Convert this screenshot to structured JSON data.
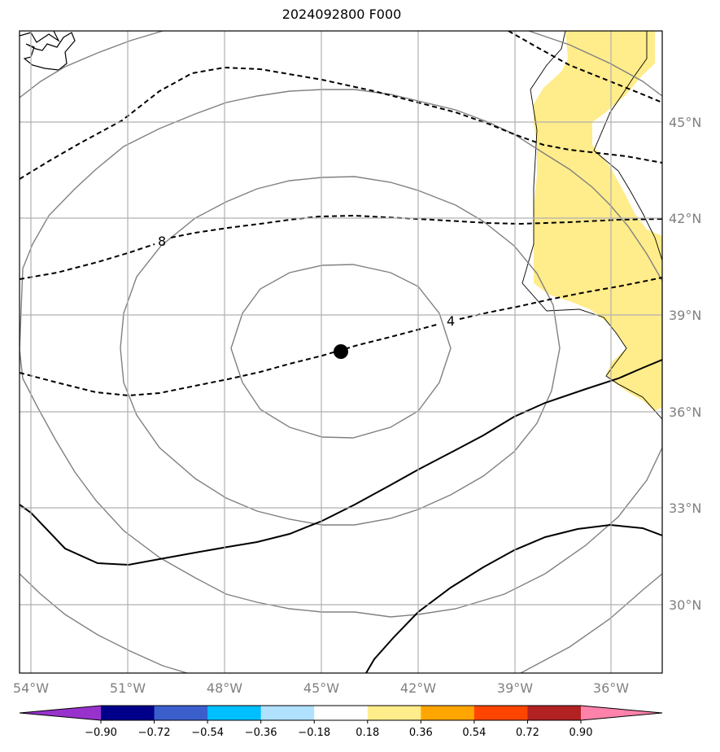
{
  "title": "2024092800 F000",
  "map": {
    "lon_range": [
      -54.3,
      -34.8
    ],
    "lat_range": [
      27.9,
      47.8
    ],
    "lon_ticks": [
      "54°W",
      "51°W",
      "48°W",
      "45°W",
      "42°W",
      "39°W",
      "36°W"
    ],
    "lat_ticks": [
      "45°N",
      "42°N",
      "39°N",
      "36°N",
      "33°N",
      "30°N"
    ],
    "grid": true,
    "center_marker": {
      "lon": -44.6,
      "lat": 37.8
    },
    "contour_labels": [
      "8",
      "4"
    ],
    "fill_color": "#ffec8b",
    "line_color_grey": "#808080"
  },
  "colorbar": {
    "labels": [
      "−0.90",
      "−0.72",
      "−0.54",
      "−0.36",
      "−0.18",
      "0.18",
      "0.36",
      "0.54",
      "0.72",
      "0.90"
    ],
    "colors": [
      "#9932cc",
      "#00008b",
      "#3a5fcd",
      "#00bfff",
      "#b0e2ff",
      "#ffffff",
      "#ffec8b",
      "#ffa500",
      "#ff4500",
      "#b22222",
      "#ff82ab"
    ]
  }
}
